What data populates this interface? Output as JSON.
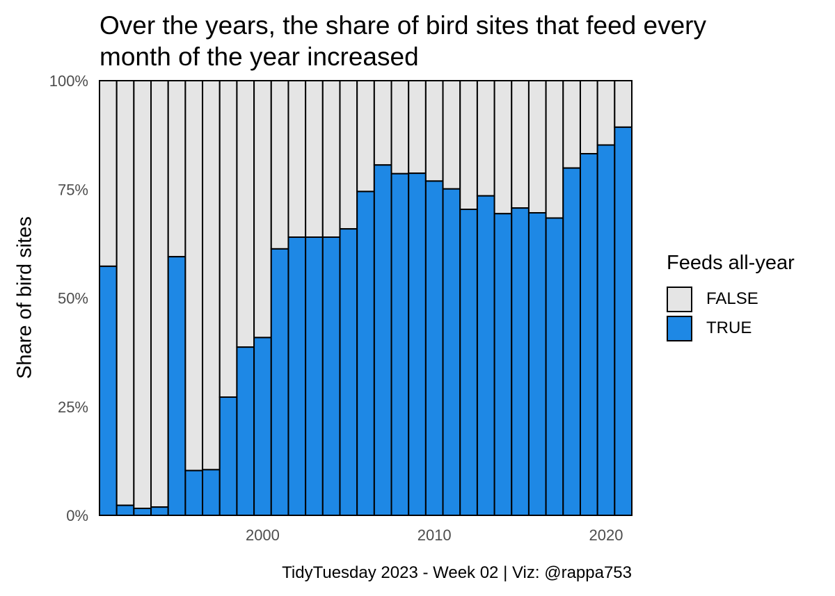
{
  "chart_data": {
    "type": "bar",
    "stacked": true,
    "normalized": true,
    "title": "Over the years, the share of bird sites that feed every month of the year increased",
    "xlabel": "",
    "ylabel": "Share of bird sites",
    "caption": "TidyTuesday 2023 - Week 02 | Viz: @rappa753",
    "legend_title": "Feeds all-year",
    "legend_position": "right",
    "x": [
      1991,
      1992,
      1993,
      1994,
      1995,
      1996,
      1997,
      1998,
      1999,
      2000,
      2001,
      2002,
      2003,
      2004,
      2005,
      2006,
      2007,
      2008,
      2009,
      2010,
      2011,
      2012,
      2013,
      2014,
      2015,
      2016,
      2017,
      2018,
      2019,
      2020,
      2021
    ],
    "xlim": [
      1990.5,
      2021.5
    ],
    "x_ticks": [
      2000,
      2010,
      2020
    ],
    "x_tick_labels": [
      "2000",
      "2010",
      "2020"
    ],
    "ylim": [
      0,
      1
    ],
    "y_ticks": [
      0,
      0.25,
      0.5,
      0.75,
      1
    ],
    "y_tick_labels": [
      "0%",
      "25%",
      "50%",
      "75%",
      "100%"
    ],
    "series": [
      {
        "name": "TRUE",
        "color": "#1e88e5",
        "values": [
          0.573,
          0.023,
          0.016,
          0.019,
          0.595,
          0.103,
          0.105,
          0.272,
          0.387,
          0.409,
          0.613,
          0.64,
          0.64,
          0.64,
          0.659,
          0.745,
          0.806,
          0.786,
          0.787,
          0.769,
          0.751,
          0.704,
          0.735,
          0.694,
          0.707,
          0.696,
          0.684,
          0.799,
          0.832,
          0.852,
          0.893
        ]
      },
      {
        "name": "FALSE",
        "color": "#e5e5e5",
        "values": [
          0.427,
          0.977,
          0.984,
          0.981,
          0.405,
          0.897,
          0.895,
          0.728,
          0.613,
          0.591,
          0.387,
          0.36,
          0.36,
          0.36,
          0.341,
          0.255,
          0.194,
          0.214,
          0.213,
          0.231,
          0.249,
          0.296,
          0.265,
          0.306,
          0.293,
          0.304,
          0.316,
          0.201,
          0.168,
          0.148,
          0.107
        ]
      }
    ],
    "legend_order": [
      "FALSE",
      "TRUE"
    ]
  }
}
